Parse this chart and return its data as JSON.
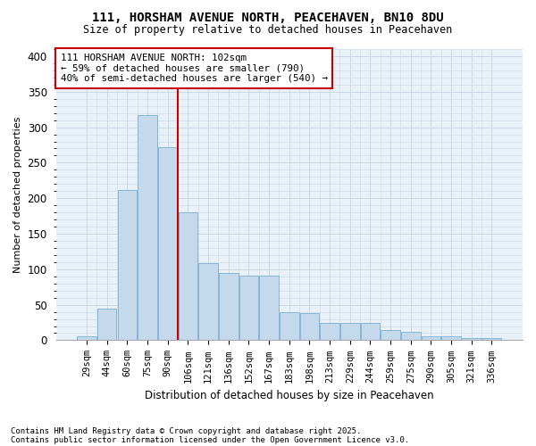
{
  "title1": "111, HORSHAM AVENUE NORTH, PEACEHAVEN, BN10 8DU",
  "title2": "Size of property relative to detached houses in Peacehaven",
  "xlabel": "Distribution of detached houses by size in Peacehaven",
  "ylabel": "Number of detached properties",
  "bar_labels": [
    "29sqm",
    "44sqm",
    "60sqm",
    "75sqm",
    "90sqm",
    "106sqm",
    "121sqm",
    "136sqm",
    "152sqm",
    "167sqm",
    "183sqm",
    "198sqm",
    "213sqm",
    "229sqm",
    "244sqm",
    "259sqm",
    "275sqm",
    "290sqm",
    "305sqm",
    "321sqm",
    "336sqm"
  ],
  "bar_values": [
    5,
    45,
    212,
    317,
    272,
    180,
    109,
    95,
    91,
    91,
    40,
    38,
    24,
    25,
    25,
    14,
    12,
    6,
    6,
    3,
    3
  ],
  "bar_color": "#c5d9ed",
  "bar_edge_color": "#7aafd4",
  "vline_color": "#cc0000",
  "annotation_text": "111 HORSHAM AVENUE NORTH: 102sqm\n← 59% of detached houses are smaller (790)\n40% of semi-detached houses are larger (540) →",
  "annotation_box_color": "white",
  "annotation_box_edge_color": "#cc0000",
  "grid_color": "#c8d8e8",
  "background_color": "#e8f0f8",
  "footnote1": "Contains HM Land Registry data © Crown copyright and database right 2025.",
  "footnote2": "Contains public sector information licensed under the Open Government Licence v3.0.",
  "ylim": [
    0,
    410
  ],
  "yticks": [
    0,
    50,
    100,
    150,
    200,
    250,
    300,
    350,
    400
  ]
}
